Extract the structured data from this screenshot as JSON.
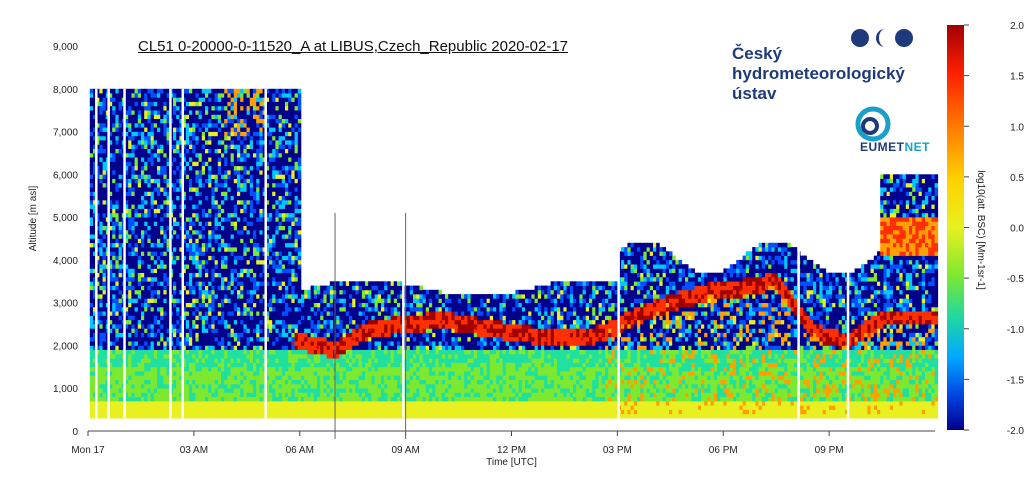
{
  "chart_data": {
    "type": "heatmap",
    "title": "CL51 0-20000-0-11520_A at LIBUS,Czech_Republic 2020-02-17",
    "xlabel": "Time [UTC]",
    "ylabel": "Altitude [m asl]",
    "x_ticks": [
      "Mon 17",
      "03 AM",
      "06 AM",
      "09 AM",
      "12 PM",
      "03 PM",
      "06 PM",
      "09 PM"
    ],
    "x_range_hours": [
      0,
      24
    ],
    "y_ticks": [
      "0",
      "1,000",
      "2,000",
      "3,000",
      "4,000",
      "5,000",
      "6,000",
      "7,000",
      "8,000",
      "9,000"
    ],
    "ylim": [
      0,
      9000
    ],
    "colorbar": {
      "label": "log10(att. BSC) [Mm-1sr-1]",
      "range": [
        -2.0,
        2.0
      ],
      "ticks": [
        "2.0",
        "1.5",
        "1.0",
        "0.5",
        "0.0",
        "-0.5",
        "-1.0",
        "-1.5",
        "-2.0"
      ],
      "colormap": [
        "#00008b",
        "#0050ff",
        "#00c8ff",
        "#20e0a0",
        "#7ce830",
        "#e8f020",
        "#ffa000",
        "#ff3000",
        "#a00000"
      ]
    },
    "cloud_layer_altitude_m": [
      {
        "x": 5.8,
        "y": 2050
      },
      {
        "x": 6.5,
        "y": 1950
      },
      {
        "x": 7.0,
        "y": 1850
      },
      {
        "x": 7.5,
        "y": 2150
      },
      {
        "x": 8.0,
        "y": 2350
      },
      {
        "x": 9.0,
        "y": 2450
      },
      {
        "x": 10.0,
        "y": 2550
      },
      {
        "x": 11.0,
        "y": 2400
      },
      {
        "x": 12.0,
        "y": 2250
      },
      {
        "x": 13.0,
        "y": 2150
      },
      {
        "x": 14.0,
        "y": 2150
      },
      {
        "x": 14.6,
        "y": 2250
      },
      {
        "x": 15.5,
        "y": 2650
      },
      {
        "x": 16.5,
        "y": 2950
      },
      {
        "x": 17.5,
        "y": 3200
      },
      {
        "x": 18.5,
        "y": 3300
      },
      {
        "x": 19.5,
        "y": 3450
      },
      {
        "x": 20.5,
        "y": 2250
      },
      {
        "x": 21.5,
        "y": 2050
      },
      {
        "x": 22.5,
        "y": 2600
      }
    ]
  },
  "logos": {
    "chmi_lines": [
      "Český",
      "hydrometeorologický",
      "ústav"
    ],
    "eumetnet_a": "EUMET",
    "eumetnet_b": "NET"
  }
}
